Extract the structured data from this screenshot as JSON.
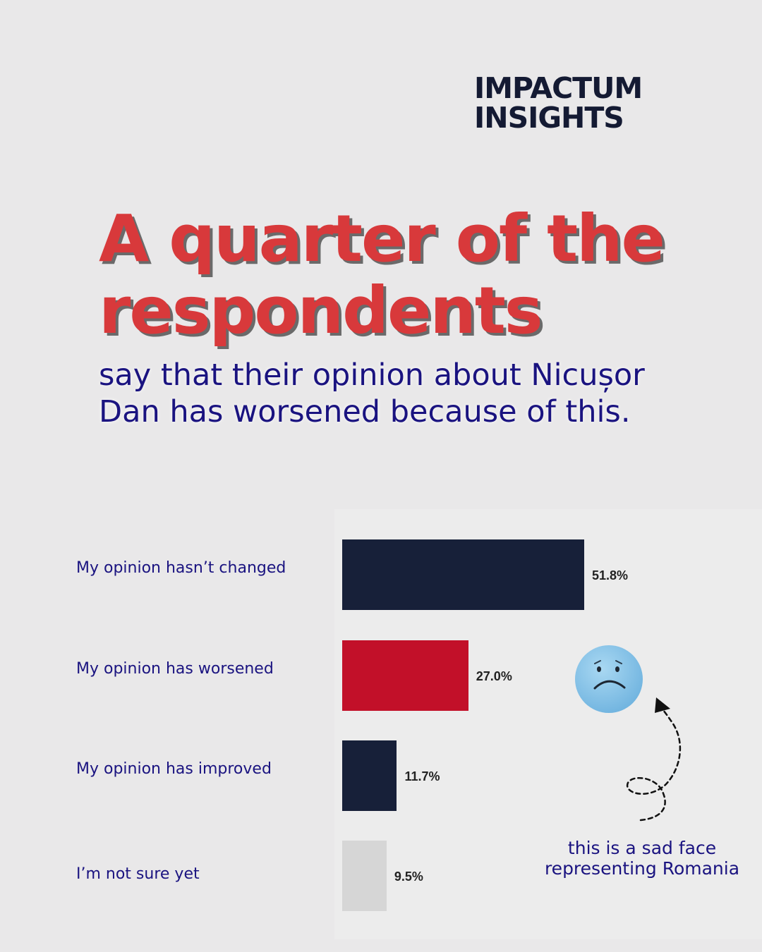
{
  "brand": {
    "line1": "IMPACTUM",
    "line2": "INSIGHTS"
  },
  "headline": "A quarter of the respondents",
  "subheadline": "say that their opinion about Nicușor Dan has worsened because of this.",
  "annotation": "this is a sad face representing Romania",
  "icons": [
    "sad-face-icon",
    "dashed-arrow-icon"
  ],
  "colors": {
    "background": "#e9e8e9",
    "headline": "#d8393b",
    "text": "#1a1380",
    "navy_bar": "#172039",
    "red_bar": "#c21029",
    "grey_bar": "#d6d6d6"
  },
  "chart_data": {
    "type": "bar",
    "orientation": "horizontal",
    "categories": [
      "My opinion hasn’t changed",
      "My opinion has worsened",
      "My opinion has improved",
      "I’m not sure yet"
    ],
    "values": [
      51.8,
      27.0,
      11.7,
      9.5
    ],
    "value_labels": [
      "51.8%",
      "27.0%",
      "11.7%",
      "9.5%"
    ],
    "bar_colors": [
      "#172039",
      "#c21029",
      "#172039",
      "#d6d6d6"
    ],
    "unit": "%",
    "xlim": [
      0,
      100
    ],
    "grid": false,
    "legend": "none"
  }
}
